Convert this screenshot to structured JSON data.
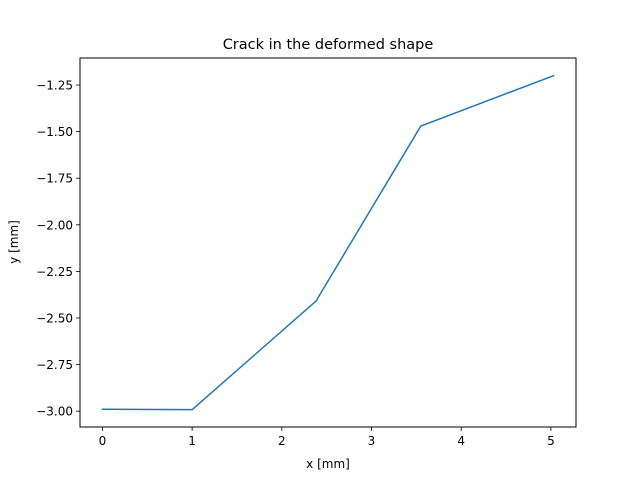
{
  "chart_data": {
    "type": "line",
    "title": "Crack in the deformed shape",
    "xlabel": "x [mm]",
    "ylabel": "y [mm]",
    "xlim": [
      -0.25,
      5.28
    ],
    "ylim": [
      -3.085,
      -1.105
    ],
    "grid": false,
    "xticks": [
      0,
      1,
      2,
      3,
      4,
      5
    ],
    "xtick_labels": [
      "0",
      "1",
      "2",
      "3",
      "4",
      "5"
    ],
    "yticks": [
      -3.0,
      -2.75,
      -2.5,
      -2.25,
      -2.0,
      -1.75,
      -1.5,
      -1.25
    ],
    "ytick_labels": [
      "−3.00",
      "−2.75",
      "−2.50",
      "−2.25",
      "−2.00",
      "−1.75",
      "−1.50",
      "−1.25"
    ],
    "series": [
      {
        "color": "#1f77b4",
        "x": [
          0,
          1.0,
          2.38,
          3.55,
          5.03
        ],
        "y": [
          -2.99,
          -2.992,
          -2.41,
          -1.47,
          -1.2
        ]
      }
    ]
  }
}
